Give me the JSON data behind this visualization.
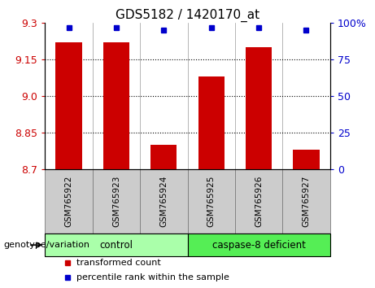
{
  "title": "GDS5182 / 1420170_at",
  "samples": [
    "GSM765922",
    "GSM765923",
    "GSM765924",
    "GSM765925",
    "GSM765926",
    "GSM765927"
  ],
  "transformed_counts": [
    9.22,
    9.22,
    8.8,
    9.08,
    9.2,
    8.78
  ],
  "percentile_ranks": [
    97,
    97,
    95,
    97,
    97,
    95
  ],
  "ylim_left": [
    8.7,
    9.3
  ],
  "ylim_right": [
    0,
    100
  ],
  "yticks_left": [
    8.7,
    8.85,
    9.0,
    9.15,
    9.3
  ],
  "yticks_right": [
    0,
    25,
    50,
    75,
    100
  ],
  "ytick_labels_right": [
    "0",
    "25",
    "50",
    "75",
    "100%"
  ],
  "bar_color": "#cc0000",
  "dot_color": "#0000cc",
  "left_tick_color": "#cc0000",
  "right_tick_color": "#0000cc",
  "bar_width": 0.55,
  "group_control_color": "#aaffaa",
  "group_deficient_color": "#55ee55",
  "xlabel_bg_color": "#cccccc",
  "genotype_label": "genotype/variation",
  "legend_items": [
    {
      "color": "#cc0000",
      "label": "transformed count"
    },
    {
      "color": "#0000cc",
      "label": "percentile rank within the sample"
    }
  ],
  "fig_width": 4.61,
  "fig_height": 3.54,
  "dpi": 100
}
